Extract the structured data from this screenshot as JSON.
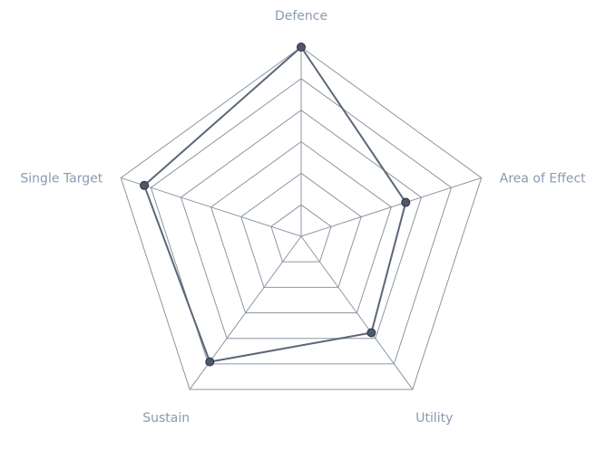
{
  "chart_data": {
    "type": "radar",
    "axes": [
      "Defence",
      "Area of Effect",
      "Utility",
      "Sustain",
      "Single Target"
    ],
    "range": [
      0,
      100
    ],
    "rings": 6,
    "series": [
      {
        "values": [
          100,
          58,
          63,
          82,
          87
        ]
      }
    ],
    "grid": true,
    "legend": "none"
  },
  "colors": {
    "grid": "#8c96a3",
    "series_line": "#5b6677",
    "series_point": "#4d5869",
    "label": "#8a9ab0"
  }
}
